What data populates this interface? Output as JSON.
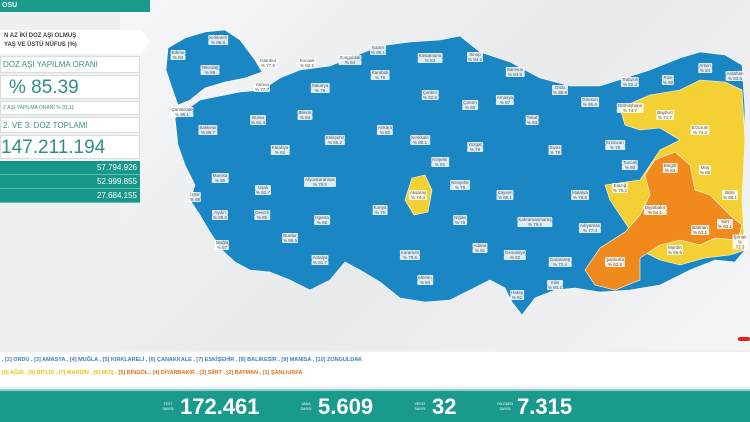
{
  "header": {
    "title_fragment": "OSU"
  },
  "panel": {
    "title_line1": "N AZ İKİ DOZ AŞI OLMUŞ",
    "title_line2": "YAŞ VE ÜSTÜ NÜFUS (%)",
    "dose_rate_label": "DOZ AŞI YAPILMA ORANI",
    "dose_rate_value": "% 85.39",
    "first_dose_rate": "Z AŞI YAPILMA ORANI % 93.11",
    "total_label": "2. VE 3. DOZ TOPLAMI",
    "total_value": "147.211.194",
    "rows": [
      "57.794.926",
      "52.999.855",
      "27.684.155"
    ]
  },
  "colors": {
    "high": "#1a86c4",
    "mid": "#f4d034",
    "low": "#f08a1c",
    "teal": "#1a9a8c"
  },
  "provinces": [
    {
      "name": "Kırklareli",
      "value": "% 86.8"
    },
    {
      "name": "Edirne",
      "value": "% 84"
    },
    {
      "name": "Tekirdağ",
      "value": "% 86"
    },
    {
      "name": "İstanbul",
      "value": "% 77.5"
    },
    {
      "name": "Kocaeli",
      "value": "% 82.5"
    },
    {
      "name": "Yalova",
      "value": "% 77.7"
    },
    {
      "name": "Sakarya",
      "value": "% 78"
    },
    {
      "name": "Zonguldak",
      "value": "% 84"
    },
    {
      "name": "Bartın",
      "value": "% 85.1"
    },
    {
      "name": "Kastamonu",
      "value": "% 83"
    },
    {
      "name": "Sinop",
      "value": "% 84.2"
    },
    {
      "name": "Samsun",
      "value": "% 83.5"
    },
    {
      "name": "Ordu",
      "value": "% 86.8"
    },
    {
      "name": "Giresun",
      "value": "% 85.6"
    },
    {
      "name": "Trabzon",
      "value": "% 82.4"
    },
    {
      "name": "Rize",
      "value": "% 80"
    },
    {
      "name": "Artvin",
      "value": "% 84"
    },
    {
      "name": "Ardahan",
      "value": "% 83.6"
    },
    {
      "name": "Çanakkale",
      "value": "% 86.1"
    },
    {
      "name": "Balıkesir",
      "value": "% 86.7"
    },
    {
      "name": "Bursa",
      "value": "% 81.4"
    },
    {
      "name": "Bilecik",
      "value": "% 84"
    },
    {
      "name": "Eskişehir",
      "value": "% 86.2"
    },
    {
      "name": "Karabük",
      "value": "% 79"
    },
    {
      "name": "Çankırı",
      "value": "% 82.5"
    },
    {
      "name": "Çorum",
      "value": "% 86"
    },
    {
      "name": "Amasya",
      "value": "% 87"
    },
    {
      "name": "Tokat",
      "value": "% 83"
    },
    {
      "name": "Ankara",
      "value": "% 82"
    },
    {
      "name": "Kırıkkale",
      "value": "% 80.1"
    },
    {
      "name": "Yozgat",
      "value": "% 79"
    },
    {
      "name": "Sivas",
      "value": "% 79"
    },
    {
      "name": "Kütahya",
      "value": "% 82"
    },
    {
      "name": "Manisa",
      "value": "% 85"
    },
    {
      "name": "Uşak",
      "value": "% 83.7"
    },
    {
      "name": "Afyonkarahisar",
      "value": "% 79.5"
    },
    {
      "name": "İzmir",
      "value": "% 88"
    },
    {
      "name": "Aydın",
      "value": "% 88.5"
    },
    {
      "name": "Denizli",
      "value": "% 85"
    },
    {
      "name": "Isparta",
      "value": "% 82"
    },
    {
      "name": "Burdur",
      "value": "% 85.5"
    },
    {
      "name": "Muğla",
      "value": "% 87"
    },
    {
      "name": "Antalya",
      "value": "% 81.7"
    },
    {
      "name": "Konya",
      "value": "% 76"
    },
    {
      "name": "Aksaray",
      "value": "% 74.4"
    },
    {
      "name": "Kırşehir",
      "value": "% 81"
    },
    {
      "name": "Nevşehir",
      "value": "% 78"
    },
    {
      "name": "Niğde",
      "value": "% 78"
    },
    {
      "name": "Kayseri",
      "value": "% 80.1"
    },
    {
      "name": "Karaman",
      "value": "% 79.6"
    },
    {
      "name": "Mersin",
      "value": "% 84"
    },
    {
      "name": "Adana",
      "value": "% 81"
    },
    {
      "name": "Osmaniye",
      "value": "% 82"
    },
    {
      "name": "Kahramanmaraş",
      "value": "% 78.6"
    },
    {
      "name": "Malatya",
      "value": "% 78.6"
    },
    {
      "name": "Adıyaman",
      "value": "% 77.4"
    },
    {
      "name": "Gaziantep",
      "value": "% 72.4"
    },
    {
      "name": "Kilis",
      "value": "% 84.2"
    },
    {
      "name": "Hatay",
      "value": "% 82"
    },
    {
      "name": "Şanlıurfa",
      "value": "% 62.6"
    },
    {
      "name": "Diyarbakır",
      "value": "% 64.1"
    },
    {
      "name": "Elazığ",
      "value": "% 70.2"
    },
    {
      "name": "Tunceli",
      "value": "% 80"
    },
    {
      "name": "Bingöl",
      "value": "% 64"
    },
    {
      "name": "Erzincan",
      "value": "% 78"
    },
    {
      "name": "Erzurum",
      "value": "% 74.2"
    },
    {
      "name": "Bayburt",
      "value": "% 71.7"
    },
    {
      "name": "Gümüşhane",
      "value": "% 74.7"
    },
    {
      "name": "Muş",
      "value": "% 66"
    },
    {
      "name": "Bitlis",
      "value": "% 68.1"
    },
    {
      "name": "Batman",
      "value": "% 63.1"
    },
    {
      "name": "Siirt",
      "value": "% 63.1"
    },
    {
      "name": "Mardin",
      "value": "% 66.6"
    },
    {
      "name": "Şırnak",
      "value": "% 72.3"
    }
  ],
  "legend": {
    "top_line": ", [2] ORDU , [3] AMASYA , [4] MUĞLA , [5] KIRKLARELİ , [6] ÇANAKKALE , [7] ESKİŞEHİR , [8] BALIKESİR , [9] MANİSA , [10] ZONGULDAK",
    "bottom_line_yellow": "[9] AĞRI , [8] BİTLİS , [7] MARDİN , [6] MUŞ ,",
    "bottom_line_orange": " [5] BİNGÖL , [4] DİYARBAKIR , [3] SİİRT , [2] BATMAN , [1] ŞANLIURFA"
  },
  "stats": [
    {
      "label": "TEST SAYISI",
      "value": "172.461"
    },
    {
      "label": "VAKA SAYISI",
      "value": "5.609"
    },
    {
      "label": "VEFAT SAYISI",
      "value": "32"
    },
    {
      "label": "İYİLEŞEN SAYISI",
      "value": "7.315"
    }
  ]
}
